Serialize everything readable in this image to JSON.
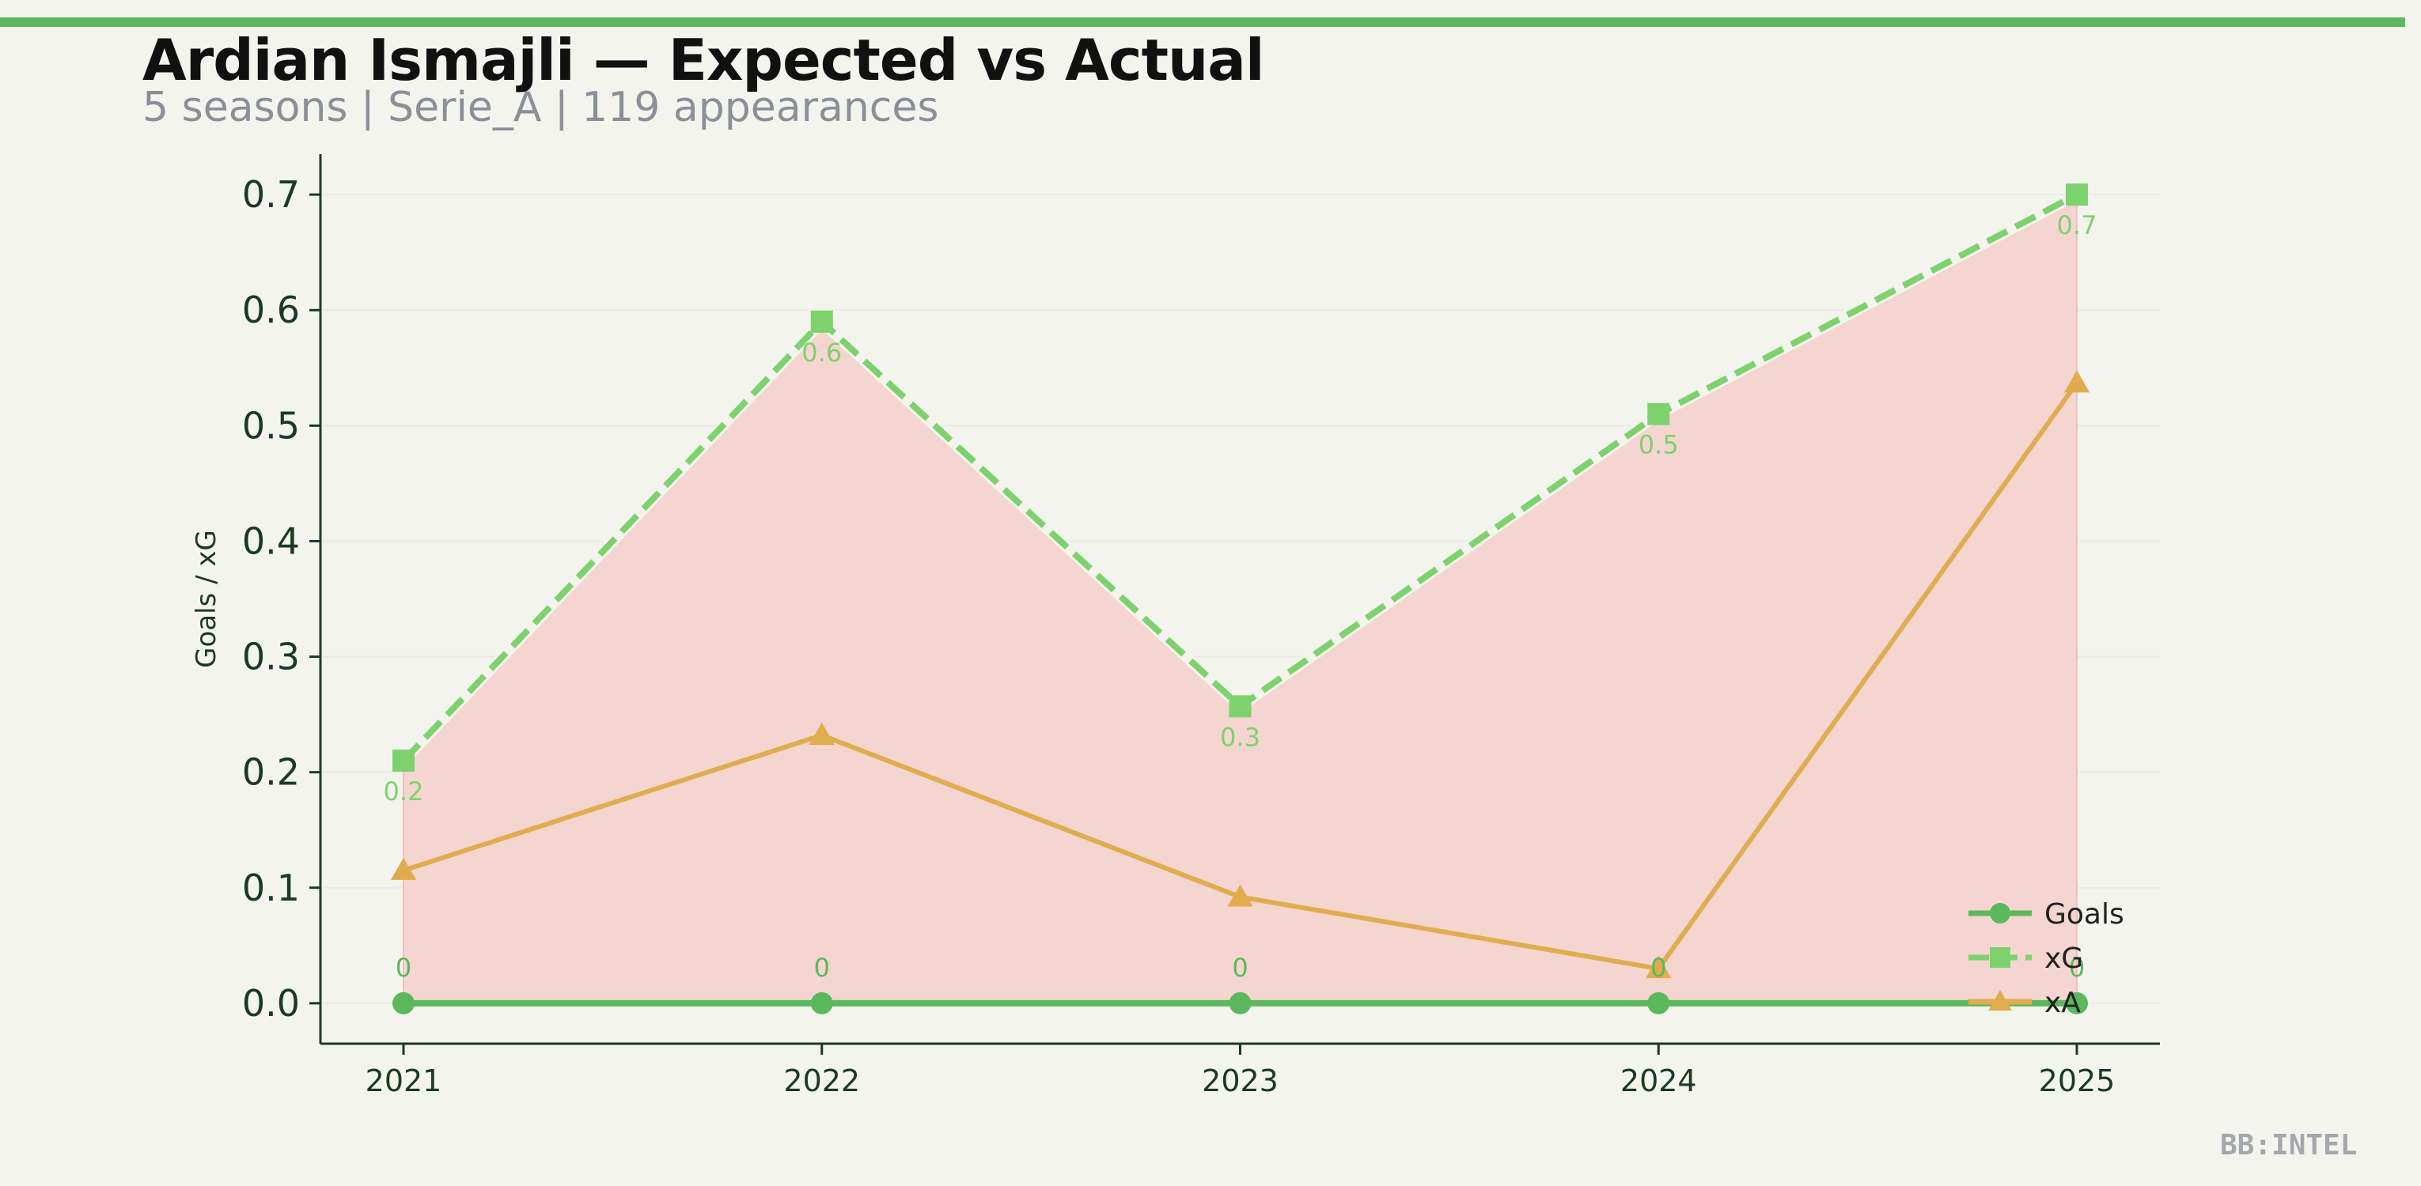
{
  "header": {
    "title": "Ardian Ismajli — Expected vs Actual",
    "subtitle": "5 seasons | Serie_A | 119 appearances"
  },
  "brand": "BB:INTEL",
  "colors": {
    "accent": "#5cb85c",
    "goals": "#5cb85c",
    "xg": "#7ed26e",
    "xa": "#e0ac4f",
    "fill": "#f5d5d0",
    "axis": "#1b3a22",
    "background": "#f4f4ef"
  },
  "chart_data": {
    "type": "line",
    "title": "Ardian Ismajli — Expected vs Actual",
    "subtitle": "5 seasons | Serie_A | 119 appearances",
    "xlabel": "",
    "ylabel": "Goals / xG",
    "x": [
      "2021",
      "2022",
      "2023",
      "2024",
      "2025"
    ],
    "ylim": [
      -0.035,
      0.735
    ],
    "yticks": [
      "0.0",
      "0.1",
      "0.2",
      "0.3",
      "0.4",
      "0.5",
      "0.6",
      "0.7"
    ],
    "grid": "horizontal, faint",
    "legend_position": "bottom-right",
    "fill_between": [
      "Goals",
      "xG"
    ],
    "series": [
      {
        "name": "Goals",
        "values": [
          0,
          0,
          0,
          0,
          0
        ],
        "labels": [
          "0",
          "0",
          "0",
          "0",
          "0"
        ],
        "marker": "circle",
        "style": "solid"
      },
      {
        "name": "xG",
        "values": [
          0.21,
          0.59,
          0.257,
          0.51,
          0.7
        ],
        "labels": [
          "0.2",
          "0.6",
          "0.3",
          "0.5",
          "0.7"
        ],
        "marker": "square",
        "style": "dashed"
      },
      {
        "name": "xA",
        "values": [
          0.115,
          0.232,
          0.092,
          0.03,
          0.537
        ],
        "marker": "triangle",
        "style": "solid"
      }
    ]
  }
}
